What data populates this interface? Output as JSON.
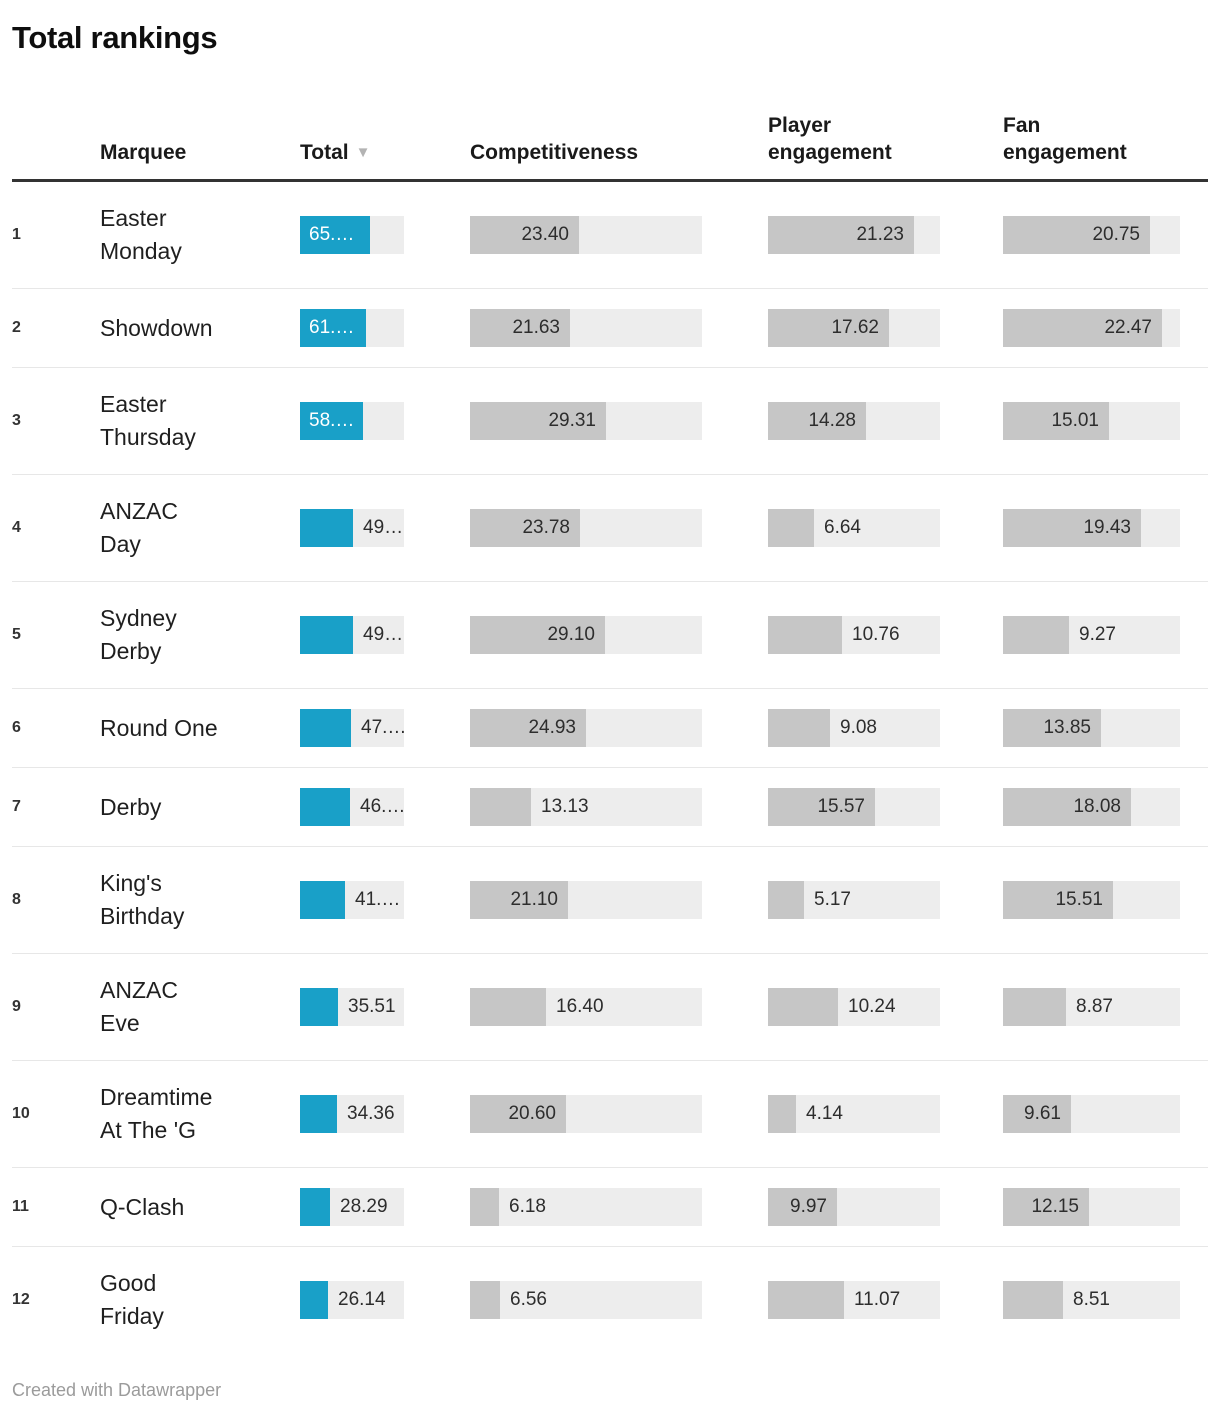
{
  "title": "Total rankings",
  "footer": "Created with Datawrapper",
  "header": {
    "marquee": "Marquee",
    "total": "Total",
    "sort_icon": "▼",
    "competitiveness": "Competitiveness",
    "player": "Player engagement",
    "fan": "Fan engagement"
  },
  "colors": {
    "accent": "#19a0c8",
    "bar_gray": "#c6c6c6",
    "bar_track": "#ededed",
    "header_rule": "#333333",
    "row_rule": "#e7e7e7"
  },
  "chart_data": {
    "type": "table",
    "columns": [
      "Marquee",
      "Total",
      "Competitiveness",
      "Player engagement",
      "Fan engagement"
    ],
    "sorted_by": "Total",
    "sort_direction": "descending",
    "bar_scale_max": {
      "total": 97,
      "competitiveness": 50,
      "player": 25,
      "fan": 25
    },
    "rows": [
      {
        "rank": "1",
        "marquee": "Easter Monday",
        "marquee_display": "Easter\nMonday",
        "total": {
          "value": 65.38,
          "label": "65.…",
          "label_inside": true
        },
        "competitiveness": {
          "value": 23.4,
          "label": "23.40",
          "label_inside": true
        },
        "player": {
          "value": 21.23,
          "label": "21.23",
          "label_inside": true
        },
        "fan": {
          "value": 20.75,
          "label": "20.75",
          "label_inside": true
        }
      },
      {
        "rank": "2",
        "marquee": "Showdown",
        "marquee_display": "Showdown",
        "total": {
          "value": 61.72,
          "label": "61.…",
          "label_inside": true
        },
        "competitiveness": {
          "value": 21.63,
          "label": "21.63",
          "label_inside": true
        },
        "player": {
          "value": 17.62,
          "label": "17.62",
          "label_inside": true
        },
        "fan": {
          "value": 22.47,
          "label": "22.47",
          "label_inside": true
        }
      },
      {
        "rank": "3",
        "marquee": "Easter Thursday",
        "marquee_display": "Easter\nThursday",
        "total": {
          "value": 58.6,
          "label": "58.…",
          "label_inside": true
        },
        "competitiveness": {
          "value": 29.31,
          "label": "29.31",
          "label_inside": true
        },
        "player": {
          "value": 14.28,
          "label": "14.28",
          "label_inside": true
        },
        "fan": {
          "value": 15.01,
          "label": "15.01",
          "label_inside": true
        }
      },
      {
        "rank": "4",
        "marquee": "ANZAC Day",
        "marquee_display": "ANZAC\nDay",
        "total": {
          "value": 49.85,
          "label": "49…",
          "label_inside": false
        },
        "competitiveness": {
          "value": 23.78,
          "label": "23.78",
          "label_inside": true
        },
        "player": {
          "value": 6.64,
          "label": "6.64",
          "label_inside": false
        },
        "fan": {
          "value": 19.43,
          "label": "19.43",
          "label_inside": true
        }
      },
      {
        "rank": "5",
        "marquee": "Sydney Derby",
        "marquee_display": "Sydney\nDerby",
        "total": {
          "value": 49.13,
          "label": "49…",
          "label_inside": false
        },
        "competitiveness": {
          "value": 29.1,
          "label": "29.10",
          "label_inside": true
        },
        "player": {
          "value": 10.76,
          "label": "10.76",
          "label_inside": false
        },
        "fan": {
          "value": 9.27,
          "label": "9.27",
          "label_inside": false
        }
      },
      {
        "rank": "6",
        "marquee": "Round One",
        "marquee_display": "Round One",
        "total": {
          "value": 47.86,
          "label": "47.…",
          "label_inside": false
        },
        "competitiveness": {
          "value": 24.93,
          "label": "24.93",
          "label_inside": true
        },
        "player": {
          "value": 9.08,
          "label": "9.08",
          "label_inside": false
        },
        "fan": {
          "value": 13.85,
          "label": "13.85",
          "label_inside": true
        }
      },
      {
        "rank": "7",
        "marquee": "Derby",
        "marquee_display": "Derby",
        "total": {
          "value": 46.78,
          "label": "46.…",
          "label_inside": false
        },
        "competitiveness": {
          "value": 13.13,
          "label": "13.13",
          "label_inside": false
        },
        "player": {
          "value": 15.57,
          "label": "15.57",
          "label_inside": true
        },
        "fan": {
          "value": 18.08,
          "label": "18.08",
          "label_inside": true
        }
      },
      {
        "rank": "8",
        "marquee": "King's Birthday",
        "marquee_display": "King's\nBirthday",
        "total": {
          "value": 41.78,
          "label": "41.…",
          "label_inside": false
        },
        "competitiveness": {
          "value": 21.1,
          "label": "21.10",
          "label_inside": true
        },
        "player": {
          "value": 5.17,
          "label": "5.17",
          "label_inside": false
        },
        "fan": {
          "value": 15.51,
          "label": "15.51",
          "label_inside": true
        }
      },
      {
        "rank": "9",
        "marquee": "ANZAC Eve",
        "marquee_display": "ANZAC\nEve",
        "total": {
          "value": 35.51,
          "label": "35.51",
          "label_inside": false
        },
        "competitiveness": {
          "value": 16.4,
          "label": "16.40",
          "label_inside": false
        },
        "player": {
          "value": 10.24,
          "label": "10.24",
          "label_inside": false
        },
        "fan": {
          "value": 8.87,
          "label": "8.87",
          "label_inside": false
        }
      },
      {
        "rank": "10",
        "marquee": "Dreamtime At The 'G",
        "marquee_display": "Dreamtime\nAt The 'G",
        "total": {
          "value": 34.36,
          "label": "34.36",
          "label_inside": false
        },
        "competitiveness": {
          "value": 20.6,
          "label": "20.60",
          "label_inside": true
        },
        "player": {
          "value": 4.14,
          "label": "4.14",
          "label_inside": false
        },
        "fan": {
          "value": 9.61,
          "label": "9.61",
          "label_inside": true
        }
      },
      {
        "rank": "11",
        "marquee": "Q-Clash",
        "marquee_display": "Q-Clash",
        "total": {
          "value": 28.29,
          "label": "28.29",
          "label_inside": false
        },
        "competitiveness": {
          "value": 6.18,
          "label": "6.18",
          "label_inside": false
        },
        "player": {
          "value": 9.97,
          "label": "9.97",
          "label_inside": true
        },
        "fan": {
          "value": 12.15,
          "label": "12.15",
          "label_inside": true
        }
      },
      {
        "rank": "12",
        "marquee": "Good Friday",
        "marquee_display": "Good\nFriday",
        "total": {
          "value": 26.14,
          "label": "26.14",
          "label_inside": false
        },
        "competitiveness": {
          "value": 6.56,
          "label": "6.56",
          "label_inside": false
        },
        "player": {
          "value": 11.07,
          "label": "11.07",
          "label_inside": false
        },
        "fan": {
          "value": 8.51,
          "label": "8.51",
          "label_inside": false
        }
      }
    ]
  }
}
